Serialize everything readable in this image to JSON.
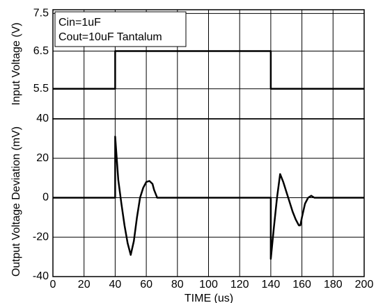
{
  "chart_data": [
    {
      "type": "line",
      "y_label": "Input Voltage (V)",
      "annotations": [
        "Cin=1uF",
        "Cout=10uF Tantalum"
      ],
      "xlim": [
        0,
        200
      ],
      "xticks": [
        0,
        20,
        40,
        60,
        80,
        100,
        120,
        140,
        160,
        180,
        200
      ],
      "ylim": [
        4.7,
        7.6
      ],
      "yticks": [
        5.5,
        6.5,
        7.5
      ],
      "grid": true,
      "series": [
        {
          "color": "#000000",
          "x": [
            0,
            40,
            40,
            140,
            140,
            200
          ],
          "values": [
            5.5,
            5.5,
            6.5,
            6.5,
            5.5,
            5.5
          ]
        }
      ]
    },
    {
      "type": "line",
      "x_label": "TIME (us)",
      "y_label": "Output Voltage Deviation (mV)",
      "xlim": [
        0,
        200
      ],
      "xticks": [
        0,
        20,
        40,
        60,
        80,
        100,
        120,
        140,
        160,
        180,
        200
      ],
      "ylim": [
        -40,
        40
      ],
      "yticks": [
        -40,
        -20,
        0,
        20,
        40
      ],
      "grid": true,
      "series": [
        {
          "color": "#000000",
          "x": [
            0,
            40,
            40,
            42,
            44,
            46,
            48,
            50,
            52,
            54,
            56,
            58,
            60,
            62,
            64,
            65,
            66,
            67,
            140,
            140,
            142,
            144,
            146,
            148,
            150,
            152,
            154,
            156,
            158,
            159,
            160,
            162,
            164,
            166,
            168,
            170,
            200
          ],
          "values": [
            0,
            0,
            31,
            9,
            -3,
            -14,
            -23,
            -29,
            -22,
            -10,
            0,
            5,
            8,
            8.5,
            7,
            4,
            2,
            0,
            0,
            -31,
            -15,
            0,
            12,
            8,
            3,
            -2,
            -7,
            -11,
            -14,
            -14,
            -10,
            -3,
            0,
            1,
            0,
            0,
            0
          ]
        }
      ]
    }
  ]
}
